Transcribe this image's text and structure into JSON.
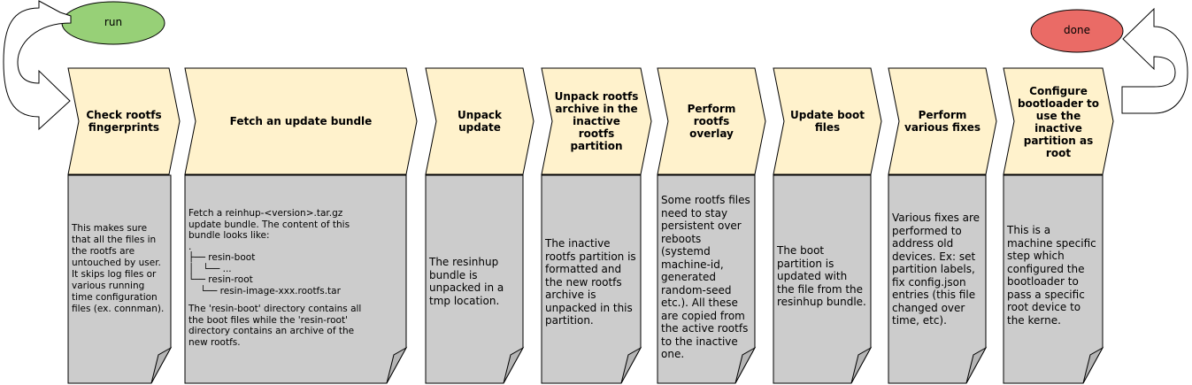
{
  "start": {
    "label": "run",
    "color": "#97d077"
  },
  "end": {
    "label": "done",
    "color": "#ea6b66"
  },
  "colors": {
    "stage_fill": "#fff2cc",
    "note_fill": "#cccccc",
    "stroke": "#000000"
  },
  "stages": [
    {
      "title": "Check rootfs fingerprints",
      "note": "This makes sure that all the files in the rootfs are untouched by user. It skips log files or various running time configuration files (ex. connman)."
    },
    {
      "title": "Fetch an update bundle",
      "note_lines": [
        "Fetch a reinhup-<version>.tar.gz",
        "update bundle. The content of this",
        "bundle looks like:",
        ".",
        "├── resin-boot",
        "│   └── ...",
        "└── resin-root",
        "    └── resin-image-xxx.rootfs.tar",
        "",
        "The 'resin-boot' directory contains all",
        "the boot files while the 'resin-root'",
        "directory contains an archive of the",
        "new rootfs."
      ]
    },
    {
      "title": "Unpack update",
      "note": "The resinhup bundle is unpacked in a tmp location."
    },
    {
      "title": "Unpack rootfs archive in the inactive rootfs partition",
      "note": "The inactive rootfs partition is formatted and the new rootfs archive is unpacked in this partition."
    },
    {
      "title": "Perform rootfs overlay",
      "note": "Some rootfs files need to stay persistent over reboots (systemd machine-id, generated random-seed etc.). All these are copied from the active rootfs to the inactive one."
    },
    {
      "title": "Update boot files",
      "note": "The boot partition is updated with the file from the resinhup bundle."
    },
    {
      "title": "Perform various fixes",
      "note": "Various fixes are performed to address old devices. Ex: set partition labels, fix config.json entries (this file changed over time, etc)."
    },
    {
      "title": "Configure bootloader to use the inactive partition as root",
      "note": "This is a machine specific step which configured the bootloader to pass a specific root device to the kerne."
    }
  ]
}
